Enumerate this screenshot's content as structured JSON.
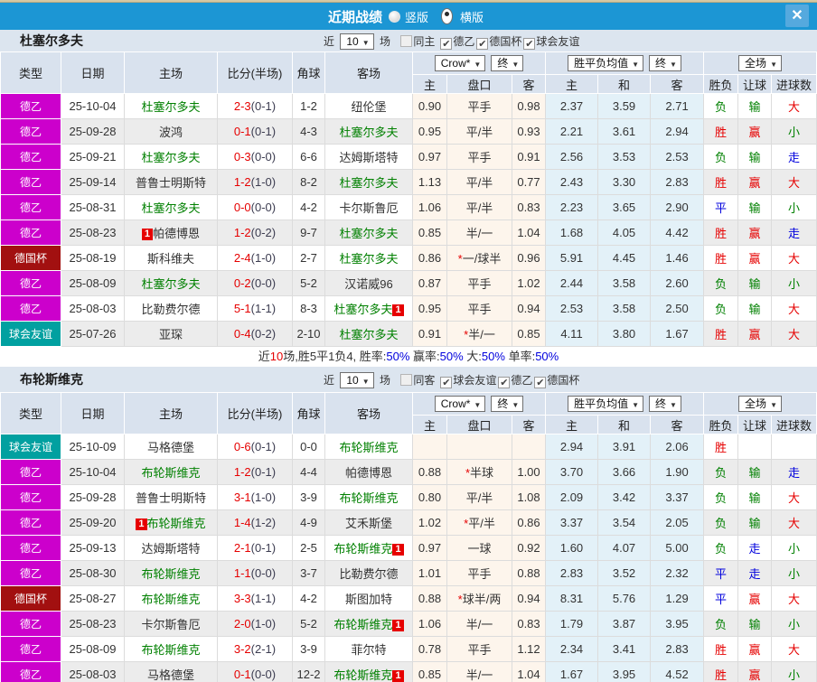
{
  "ui": {
    "near": "近",
    "games": "场",
    "close": "✕"
  },
  "titlebar": {
    "title": "近期战绩",
    "radio_vertical": "竖版",
    "radio_horizontal": "横版",
    "selected": "横版"
  },
  "table_header": {
    "type": "类型",
    "date": "日期",
    "home": "主场",
    "score": "比分(半场)",
    "corner": "角球",
    "away": "客场",
    "dd_odds_source": "Crow*",
    "dd_odds_final": "终",
    "dd_mean": "胜平负均值",
    "dd_mean_final": "终",
    "dd_scope": "全场",
    "sub": [
      "主",
      "盘口",
      "客",
      "主",
      "和",
      "客",
      "胜负",
      "让球",
      "进球数"
    ]
  },
  "colors": {
    "r": "#e60000",
    "g": "#008000",
    "b": "#0000dd",
    "k": "#333333"
  },
  "league_colors": {
    "德乙": "#cc00cc",
    "德国杯": "#a21010",
    "球会友谊": "#01a0a0"
  },
  "teams": [
    {
      "name": "杜塞尔多夫",
      "filter": {
        "count": "10",
        "same": "同主",
        "same_checked": false,
        "leagues": [
          "德乙",
          "德国杯",
          "球会友谊"
        ]
      },
      "rows": [
        {
          "league": "德乙",
          "date": "25-10-04",
          "home": {
            "name": "杜塞尔多夫",
            "green": true
          },
          "score": "2-3",
          "half": "(0-1)",
          "corners": "1-2",
          "away": {
            "name": "纽伦堡",
            "green": false
          },
          "odds": [
            "0.90",
            "平手",
            "0.98"
          ],
          "mean": [
            "2.37",
            "3.59",
            "2.71"
          ],
          "res": [
            [
              "负",
              "g"
            ],
            [
              "输",
              "g"
            ],
            [
              "大",
              "r"
            ]
          ]
        },
        {
          "league": "德乙",
          "date": "25-09-28",
          "home": {
            "name": "波鸿",
            "green": false
          },
          "score": "0-1",
          "half": "(0-1)",
          "corners": "4-3",
          "away": {
            "name": "杜塞尔多夫",
            "green": true
          },
          "odds": [
            "0.95",
            "平/半",
            "0.93"
          ],
          "mean": [
            "2.21",
            "3.61",
            "2.94"
          ],
          "res": [
            [
              "胜",
              "r"
            ],
            [
              "赢",
              "r"
            ],
            [
              "小",
              "g"
            ]
          ]
        },
        {
          "league": "德乙",
          "date": "25-09-21",
          "home": {
            "name": "杜塞尔多夫",
            "green": true
          },
          "score": "0-3",
          "half": "(0-0)",
          "corners": "6-6",
          "away": {
            "name": "达姆斯塔特",
            "green": false
          },
          "odds": [
            "0.97",
            "平手",
            "0.91"
          ],
          "mean": [
            "2.56",
            "3.53",
            "2.53"
          ],
          "res": [
            [
              "负",
              "g"
            ],
            [
              "输",
              "g"
            ],
            [
              "走",
              "b"
            ]
          ]
        },
        {
          "league": "德乙",
          "date": "25-09-14",
          "home": {
            "name": "普鲁士明斯特",
            "green": false
          },
          "score": "1-2",
          "half": "(1-0)",
          "corners": "8-2",
          "away": {
            "name": "杜塞尔多夫",
            "green": true
          },
          "odds": [
            "1.13",
            "平/半",
            "0.77"
          ],
          "mean": [
            "2.43",
            "3.30",
            "2.83"
          ],
          "res": [
            [
              "胜",
              "r"
            ],
            [
              "赢",
              "r"
            ],
            [
              "大",
              "r"
            ]
          ]
        },
        {
          "league": "德乙",
          "date": "25-08-31",
          "home": {
            "name": "杜塞尔多夫",
            "green": true
          },
          "score": "0-0",
          "half": "(0-0)",
          "corners": "4-2",
          "away": {
            "name": "卡尔斯鲁厄",
            "green": false
          },
          "odds": [
            "1.06",
            "平/半",
            "0.83"
          ],
          "mean": [
            "2.23",
            "3.65",
            "2.90"
          ],
          "res": [
            [
              "平",
              "b"
            ],
            [
              "输",
              "g"
            ],
            [
              "小",
              "g"
            ]
          ]
        },
        {
          "league": "德乙",
          "date": "25-08-23",
          "home": {
            "name": "帕德博恩",
            "green": false,
            "badge_pre": "1"
          },
          "score": "1-2",
          "half": "(0-2)",
          "corners": "9-7",
          "away": {
            "name": "杜塞尔多夫",
            "green": true
          },
          "odds": [
            "0.85",
            "半/一",
            "1.04"
          ],
          "mean": [
            "1.68",
            "4.05",
            "4.42"
          ],
          "res": [
            [
              "胜",
              "r"
            ],
            [
              "赢",
              "r"
            ],
            [
              "走",
              "b"
            ]
          ]
        },
        {
          "league": "德国杯",
          "date": "25-08-19",
          "home": {
            "name": "斯科维夫",
            "green": false
          },
          "score": "2-4",
          "half": "(1-0)",
          "corners": "2-7",
          "away": {
            "name": "杜塞尔多夫",
            "green": true
          },
          "odds": [
            "0.86",
            "*一/球半",
            "0.96"
          ],
          "mean": [
            "5.91",
            "4.45",
            "1.46"
          ],
          "res": [
            [
              "胜",
              "r"
            ],
            [
              "赢",
              "r"
            ],
            [
              "大",
              "r"
            ]
          ]
        },
        {
          "league": "德乙",
          "date": "25-08-09",
          "home": {
            "name": "杜塞尔多夫",
            "green": true
          },
          "score": "0-2",
          "half": "(0-0)",
          "corners": "5-2",
          "away": {
            "name": "汉诺威96",
            "green": false
          },
          "odds": [
            "0.87",
            "平手",
            "1.02"
          ],
          "mean": [
            "2.44",
            "3.58",
            "2.60"
          ],
          "res": [
            [
              "负",
              "g"
            ],
            [
              "输",
              "g"
            ],
            [
              "小",
              "g"
            ]
          ]
        },
        {
          "league": "德乙",
          "date": "25-08-03",
          "home": {
            "name": "比勒费尔德",
            "green": false
          },
          "score": "5-1",
          "half": "(1-1)",
          "corners": "8-3",
          "away": {
            "name": "杜塞尔多夫",
            "green": true,
            "badge_post": "1"
          },
          "odds": [
            "0.95",
            "平手",
            "0.94"
          ],
          "mean": [
            "2.53",
            "3.58",
            "2.50"
          ],
          "res": [
            [
              "负",
              "g"
            ],
            [
              "输",
              "g"
            ],
            [
              "大",
              "r"
            ]
          ]
        },
        {
          "league": "球会友谊",
          "date": "25-07-26",
          "home": {
            "name": "亚琛",
            "green": false
          },
          "score": "0-4",
          "half": "(0-2)",
          "corners": "2-10",
          "away": {
            "name": "杜塞尔多夫",
            "green": true
          },
          "odds": [
            "0.91",
            "*半/一",
            "0.85"
          ],
          "mean": [
            "4.11",
            "3.80",
            "1.67"
          ],
          "res": [
            [
              "胜",
              "r"
            ],
            [
              "赢",
              "r"
            ],
            [
              "大",
              "r"
            ]
          ]
        }
      ],
      "summary": [
        [
          "近",
          "k"
        ],
        [
          "10",
          "r"
        ],
        [
          "场,胜5平1负4, 胜率:",
          "k"
        ],
        [
          "50%",
          "b"
        ],
        [
          " 赢率:",
          "k"
        ],
        [
          "50%",
          "b"
        ],
        [
          " 大:",
          "k"
        ],
        [
          "50%",
          "b"
        ],
        [
          " 单率:",
          "k"
        ],
        [
          "50%",
          "b"
        ]
      ]
    },
    {
      "name": "布轮斯维克",
      "filter": {
        "count": "10",
        "same": "同客",
        "same_checked": false,
        "leagues": [
          "球会友谊",
          "德乙",
          "德国杯"
        ]
      },
      "rows": [
        {
          "league": "球会友谊",
          "date": "25-10-09",
          "home": {
            "name": "马格德堡",
            "green": false
          },
          "score": "0-6",
          "half": "(0-1)",
          "corners": "0-0",
          "away": {
            "name": "布轮斯维克",
            "green": true
          },
          "odds": [
            "",
            "",
            ""
          ],
          "mean": [
            "2.94",
            "3.91",
            "2.06"
          ],
          "res": [
            [
              "胜",
              "r"
            ],
            [
              "",
              ""
            ],
            [
              "",
              ""
            ]
          ]
        },
        {
          "league": "德乙",
          "date": "25-10-04",
          "home": {
            "name": "布轮斯维克",
            "green": true
          },
          "score": "1-2",
          "half": "(0-1)",
          "corners": "4-4",
          "away": {
            "name": "帕德博恩",
            "green": false
          },
          "odds": [
            "0.88",
            "*半球",
            "1.00"
          ],
          "mean": [
            "3.70",
            "3.66",
            "1.90"
          ],
          "res": [
            [
              "负",
              "g"
            ],
            [
              "输",
              "g"
            ],
            [
              "走",
              "b"
            ]
          ]
        },
        {
          "league": "德乙",
          "date": "25-09-28",
          "home": {
            "name": "普鲁士明斯特",
            "green": false
          },
          "score": "3-1",
          "half": "(1-0)",
          "corners": "3-9",
          "away": {
            "name": "布轮斯维克",
            "green": true
          },
          "odds": [
            "0.80",
            "平/半",
            "1.08"
          ],
          "mean": [
            "2.09",
            "3.42",
            "3.37"
          ],
          "res": [
            [
              "负",
              "g"
            ],
            [
              "输",
              "g"
            ],
            [
              "大",
              "r"
            ]
          ]
        },
        {
          "league": "德乙",
          "date": "25-09-20",
          "home": {
            "name": "布轮斯维克",
            "green": true,
            "badge_pre": "1"
          },
          "score": "1-4",
          "half": "(1-2)",
          "corners": "4-9",
          "away": {
            "name": "艾禾斯堡",
            "green": false
          },
          "odds": [
            "1.02",
            "*平/半",
            "0.86"
          ],
          "mean": [
            "3.37",
            "3.54",
            "2.05"
          ],
          "res": [
            [
              "负",
              "g"
            ],
            [
              "输",
              "g"
            ],
            [
              "大",
              "r"
            ]
          ]
        },
        {
          "league": "德乙",
          "date": "25-09-13",
          "home": {
            "name": "达姆斯塔特",
            "green": false
          },
          "score": "2-1",
          "half": "(0-1)",
          "corners": "2-5",
          "away": {
            "name": "布轮斯维克",
            "green": true,
            "badge_post": "1"
          },
          "odds": [
            "0.97",
            "一球",
            "0.92"
          ],
          "mean": [
            "1.60",
            "4.07",
            "5.00"
          ],
          "res": [
            [
              "负",
              "g"
            ],
            [
              "走",
              "b"
            ],
            [
              "小",
              "g"
            ]
          ]
        },
        {
          "league": "德乙",
          "date": "25-08-30",
          "home": {
            "name": "布轮斯维克",
            "green": true
          },
          "score": "1-1",
          "half": "(0-0)",
          "corners": "3-7",
          "away": {
            "name": "比勒费尔德",
            "green": false
          },
          "odds": [
            "1.01",
            "平手",
            "0.88"
          ],
          "mean": [
            "2.83",
            "3.52",
            "2.32"
          ],
          "res": [
            [
              "平",
              "b"
            ],
            [
              "走",
              "b"
            ],
            [
              "小",
              "g"
            ]
          ]
        },
        {
          "league": "德国杯",
          "date": "25-08-27",
          "home": {
            "name": "布轮斯维克",
            "green": true
          },
          "score": "3-3",
          "half": "(1-1)",
          "corners": "4-2",
          "away": {
            "name": "斯图加特",
            "green": false
          },
          "odds": [
            "0.88",
            "*球半/两",
            "0.94"
          ],
          "mean": [
            "8.31",
            "5.76",
            "1.29"
          ],
          "res": [
            [
              "平",
              "b"
            ],
            [
              "赢",
              "r"
            ],
            [
              "大",
              "r"
            ]
          ]
        },
        {
          "league": "德乙",
          "date": "25-08-23",
          "home": {
            "name": "卡尔斯鲁厄",
            "green": false
          },
          "score": "2-0",
          "half": "(1-0)",
          "corners": "5-2",
          "away": {
            "name": "布轮斯维克",
            "green": true,
            "badge_post": "1"
          },
          "odds": [
            "1.06",
            "半/一",
            "0.83"
          ],
          "mean": [
            "1.79",
            "3.87",
            "3.95"
          ],
          "res": [
            [
              "负",
              "g"
            ],
            [
              "输",
              "g"
            ],
            [
              "小",
              "g"
            ]
          ]
        },
        {
          "league": "德乙",
          "date": "25-08-09",
          "home": {
            "name": "布轮斯维克",
            "green": true
          },
          "score": "3-2",
          "half": "(2-1)",
          "corners": "3-9",
          "away": {
            "name": "菲尔特",
            "green": false
          },
          "odds": [
            "0.78",
            "平手",
            "1.12"
          ],
          "mean": [
            "2.34",
            "3.41",
            "2.83"
          ],
          "res": [
            [
              "胜",
              "r"
            ],
            [
              "赢",
              "r"
            ],
            [
              "大",
              "r"
            ]
          ]
        },
        {
          "league": "德乙",
          "date": "25-08-03",
          "home": {
            "name": "马格德堡",
            "green": false
          },
          "score": "0-1",
          "half": "(0-0)",
          "corners": "12-2",
          "away": {
            "name": "布轮斯维克",
            "green": true,
            "badge_post": "1"
          },
          "odds": [
            "0.85",
            "半/一",
            "1.04"
          ],
          "mean": [
            "1.67",
            "3.95",
            "4.52"
          ],
          "res": [
            [
              "胜",
              "r"
            ],
            [
              "赢",
              "r"
            ],
            [
              "小",
              "g"
            ]
          ]
        }
      ]
    }
  ]
}
